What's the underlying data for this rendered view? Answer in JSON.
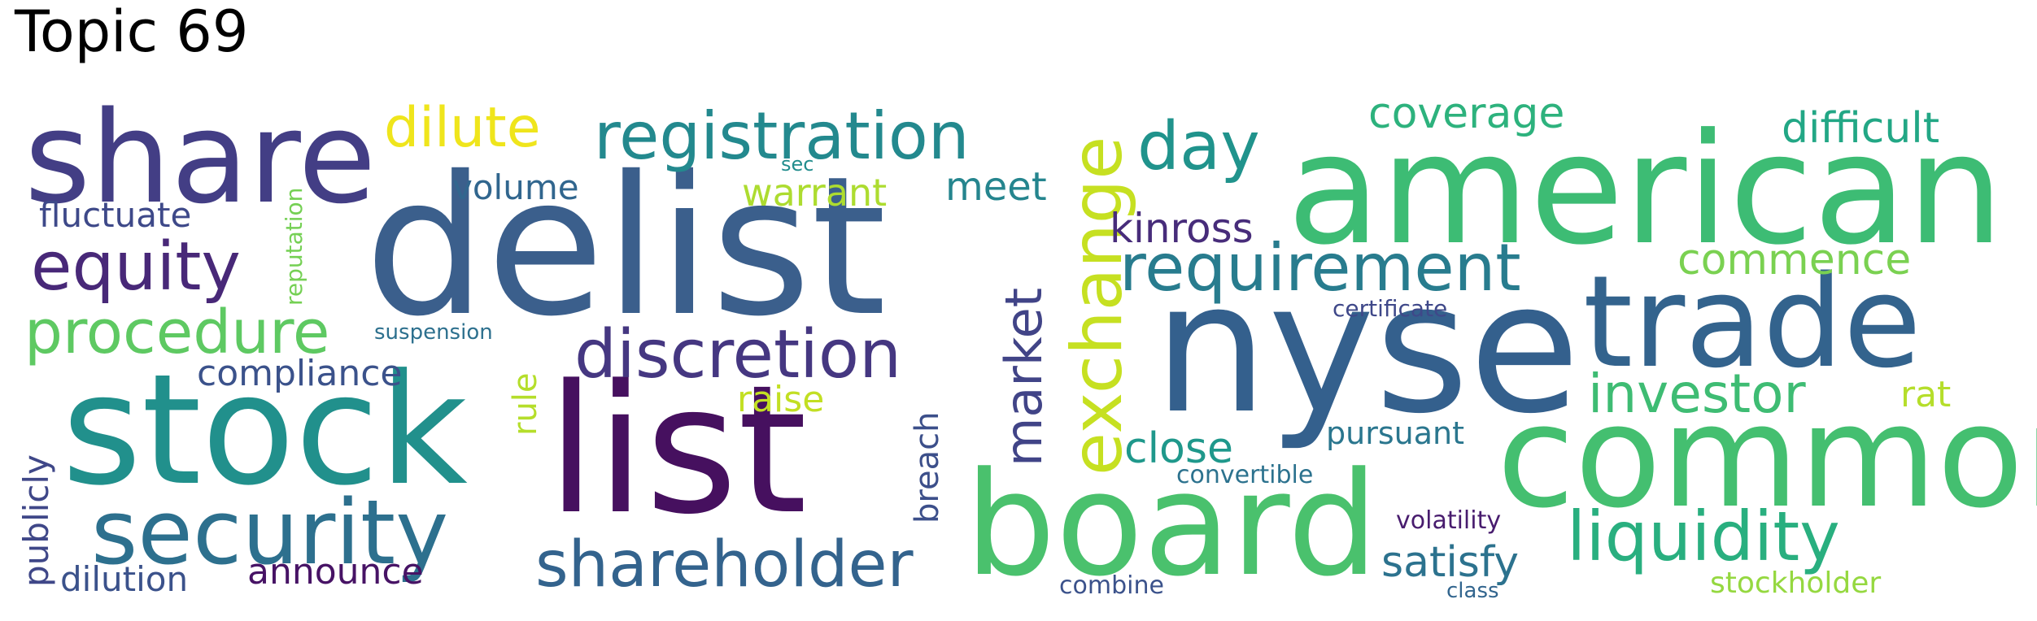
{
  "title": "Topic 69",
  "words": [
    {
      "text": "delist",
      "color": "#3b5f8c"
    },
    {
      "text": "nyse",
      "color": "#34608d"
    },
    {
      "text": "american",
      "color": "#3dbc74"
    },
    {
      "text": "list",
      "color": "#46105f"
    },
    {
      "text": "stock",
      "color": "#21908c"
    },
    {
      "text": "board",
      "color": "#4ac16d"
    },
    {
      "text": "common",
      "color": "#44bf70"
    },
    {
      "text": "share",
      "color": "#433e85"
    },
    {
      "text": "trade",
      "color": "#33638d"
    },
    {
      "text": "security",
      "color": "#2d708e"
    },
    {
      "text": "exchange",
      "color": "#c6e021"
    },
    {
      "text": "registration",
      "color": "#23898e"
    },
    {
      "text": "discretion",
      "color": "#453781"
    },
    {
      "text": "requirement",
      "color": "#287c8e"
    },
    {
      "text": "shareholder",
      "color": "#33638d"
    },
    {
      "text": "liquidity",
      "color": "#29af7f"
    },
    {
      "text": "equity",
      "color": "#482878"
    },
    {
      "text": "procedure",
      "color": "#5ec962"
    },
    {
      "text": "market",
      "color": "#414487"
    },
    {
      "text": "day",
      "color": "#20938c"
    },
    {
      "text": "investor",
      "color": "#3ebc73"
    },
    {
      "text": "dilute",
      "color": "#efe51c"
    },
    {
      "text": "difficult",
      "color": "#22a785"
    },
    {
      "text": "coverage",
      "color": "#2db27d"
    },
    {
      "text": "commence",
      "color": "#7ad151"
    },
    {
      "text": "satisfy",
      "color": "#2c728e"
    },
    {
      "text": "kinross",
      "color": "#472c7a"
    },
    {
      "text": "close",
      "color": "#1f988b"
    },
    {
      "text": "compliance",
      "color": "#3b528b"
    },
    {
      "text": "warrant",
      "color": "#addc30"
    },
    {
      "text": "meet",
      "color": "#25858e"
    },
    {
      "text": "fluctuate",
      "color": "#3e4989"
    },
    {
      "text": "volume",
      "color": "#31668e"
    },
    {
      "text": "raise",
      "color": "#c2df23"
    },
    {
      "text": "rat",
      "color": "#b5de2b"
    },
    {
      "text": "announce",
      "color": "#471365"
    },
    {
      "text": "dilution",
      "color": "#3b528b"
    },
    {
      "text": "pursuant",
      "color": "#2a768e"
    },
    {
      "text": "publicly",
      "color": "#3f4788"
    },
    {
      "text": "rule",
      "color": "#b5de2b"
    },
    {
      "text": "breach",
      "color": "#3c4f8a"
    },
    {
      "text": "stockholder",
      "color": "#95d840"
    },
    {
      "text": "reputation",
      "color": "#75d054"
    },
    {
      "text": "volatility",
      "color": "#481c6e"
    },
    {
      "text": "convertible",
      "color": "#2c728e"
    },
    {
      "text": "certificate",
      "color": "#3f4889"
    },
    {
      "text": "suspension",
      "color": "#2d708e"
    },
    {
      "text": "combine",
      "color": "#3b528b"
    },
    {
      "text": "class",
      "color": "#32658e"
    },
    {
      "text": "sec",
      "color": "#228d8d"
    }
  ]
}
